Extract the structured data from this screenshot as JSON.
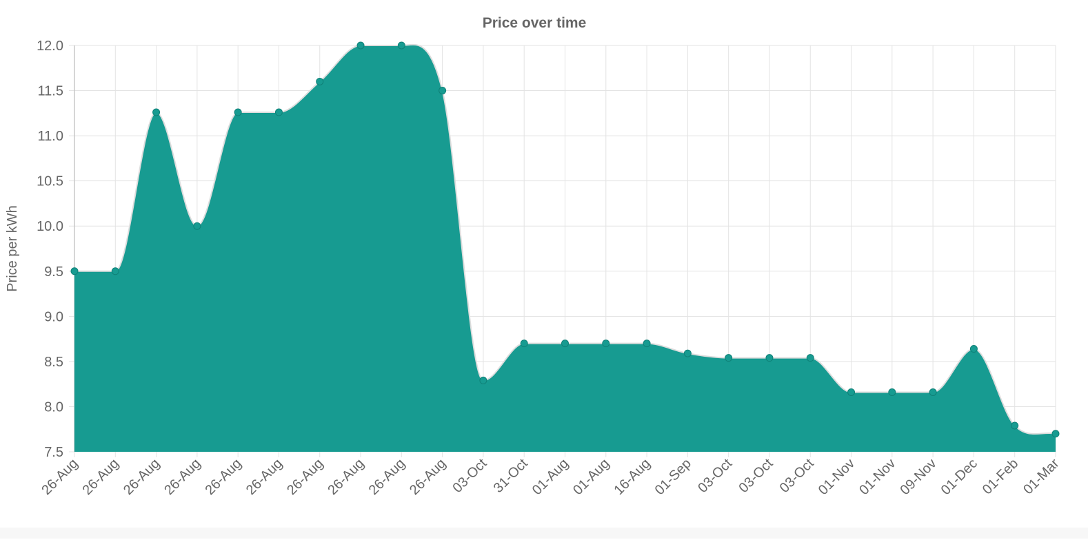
{
  "chart_data": {
    "type": "area",
    "title": "Price over time",
    "xlabel": "",
    "ylabel": "Price per kWh",
    "categories": [
      "26-Aug",
      "26-Aug",
      "26-Aug",
      "26-Aug",
      "26-Aug",
      "26-Aug",
      "26-Aug",
      "26-Aug",
      "26-Aug",
      "26-Aug",
      "03-Oct",
      "31-Oct",
      "01-Aug",
      "01-Aug",
      "16-Aug",
      "01-Sep",
      "03-Oct",
      "03-Oct",
      "03-Oct",
      "01-Nov",
      "01-Nov",
      "09-Nov",
      "01-Dec",
      "01-Feb",
      "01-Mar"
    ],
    "series": [
      {
        "values": [
          9.5,
          9.5,
          11.26,
          10.0,
          11.26,
          11.26,
          11.6,
          12.0,
          12.0,
          11.5,
          8.29,
          8.7,
          8.7,
          8.7,
          8.7,
          8.59,
          8.54,
          8.54,
          8.54,
          8.16,
          8.16,
          8.16,
          8.64,
          7.79,
          7.7
        ]
      }
    ],
    "ylim": [
      7.5,
      12.0
    ],
    "yticks": [
      "12.0",
      "11.5",
      "11.0",
      "10.5",
      "10.0",
      "9.5",
      "9.0",
      "8.5",
      "8.0",
      "7.5"
    ],
    "grid": true,
    "colors": {
      "fill": "#179b91",
      "point": "#179b91",
      "line": "#dddddd",
      "grid": "#e3e3e3",
      "text": "#666666",
      "axis": "#c8c8c8"
    }
  }
}
